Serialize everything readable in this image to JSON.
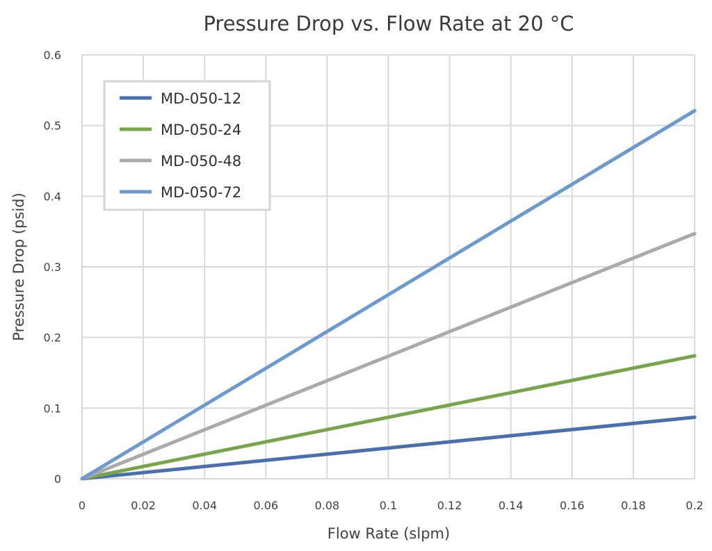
{
  "chart_data": {
    "type": "line",
    "title": "Pressure Drop vs. Flow Rate at 20 °C",
    "xlabel": "Flow Rate (slpm)",
    "ylabel": "Pressure Drop (psid)",
    "xlim": [
      0,
      0.2
    ],
    "ylim": [
      0,
      0.6
    ],
    "x_ticks": [
      "0",
      "0.02",
      "0.04",
      "0.06",
      "0.08",
      "0.1",
      "0.12",
      "0.14",
      "0.16",
      "0.18",
      "0.2"
    ],
    "y_ticks": [
      "0",
      "0.1",
      "0.2",
      "0.3",
      "0.4",
      "0.5",
      "0.6"
    ],
    "grid": true,
    "legend_position": "top-left",
    "series": [
      {
        "name": "MD-050-12",
        "color": "#4A6FAE",
        "x": [
          0,
          0.2
        ],
        "y": [
          0,
          0.087
        ]
      },
      {
        "name": "MD-050-24",
        "color": "#77A64A",
        "x": [
          0,
          0.2
        ],
        "y": [
          0,
          0.174
        ]
      },
      {
        "name": "MD-050-48",
        "color": "#AAAAAA",
        "x": [
          0,
          0.2
        ],
        "y": [
          0,
          0.347
        ]
      },
      {
        "name": "MD-050-72",
        "color": "#6A9ACF",
        "x": [
          0,
          0.2
        ],
        "y": [
          0,
          0.521
        ]
      }
    ]
  }
}
